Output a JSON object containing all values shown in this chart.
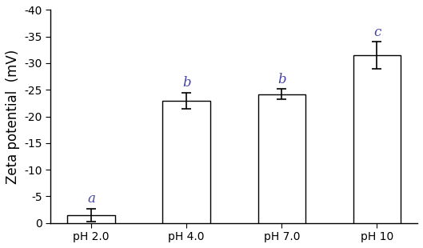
{
  "categories": [
    "pH 2.0",
    "pH 4.0",
    "pH 7.0",
    "pH 10"
  ],
  "values_abs": [
    1.5,
    23.0,
    24.2,
    31.5
  ],
  "errors": [
    1.2,
    1.5,
    1.0,
    2.5
  ],
  "labels": [
    "a",
    "b",
    "b",
    "c"
  ],
  "ylabel": "Zeta potential  (mV)",
  "ylim_abs": [
    0,
    40
  ],
  "yticks_abs": [
    0,
    5,
    10,
    15,
    20,
    25,
    30,
    35,
    40
  ],
  "ytick_labels": [
    "0",
    "-5",
    "-10",
    "-15",
    "-20",
    "-25",
    "-30",
    "-35",
    "-40"
  ],
  "bar_color": "white",
  "bar_edgecolor": "black",
  "label_color": "#4444aa",
  "bar_width": 0.5,
  "label_fontsize": 12,
  "tick_fontsize": 10,
  "ylabel_fontsize": 12,
  "capsize": 4,
  "elinewidth": 1.2
}
